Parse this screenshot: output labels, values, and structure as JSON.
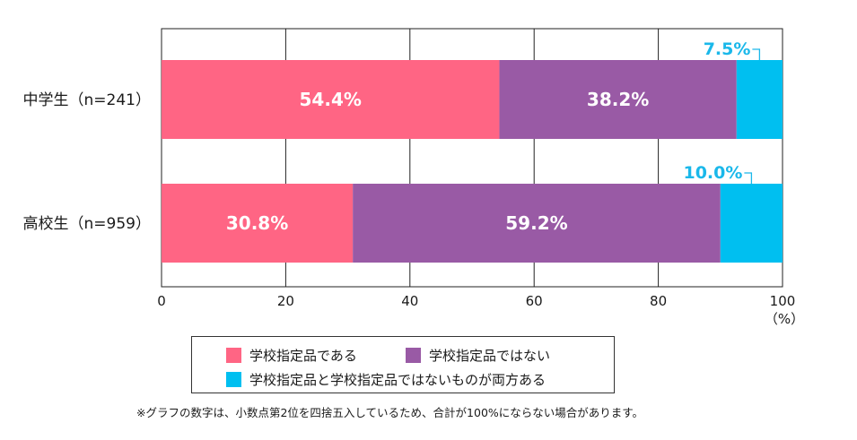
{
  "chart_data": {
    "type": "bar",
    "orientation": "horizontal",
    "stacked": true,
    "categories": [
      "中学生（n=241）",
      "高校生（n=959）"
    ],
    "series": [
      {
        "name": "学校指定品である",
        "color": "#ff6584",
        "values": [
          54.4,
          30.8
        ],
        "labels": [
          "54.4%",
          "30.8%"
        ]
      },
      {
        "name": "学校指定品ではない",
        "color": "#995aa5",
        "values": [
          38.2,
          59.2
        ],
        "labels": [
          "38.2%",
          "59.2%"
        ]
      },
      {
        "name": "学校指定品と学校指定品ではないものが両方ある",
        "color": "#00bff0",
        "values": [
          7.5,
          10.0
        ],
        "labels": [
          "7.5%",
          "10.0%"
        ]
      }
    ],
    "xlim": [
      0,
      100
    ],
    "x_ticks": [
      "0",
      "20",
      "40",
      "60",
      "80",
      "100"
    ],
    "x_unit": "（%）",
    "grid": true,
    "legend_position": "bottom"
  },
  "note": "※グラフの数字は、小数点第2位を四捨五入しているため、合計が100%にならない場合があります。"
}
